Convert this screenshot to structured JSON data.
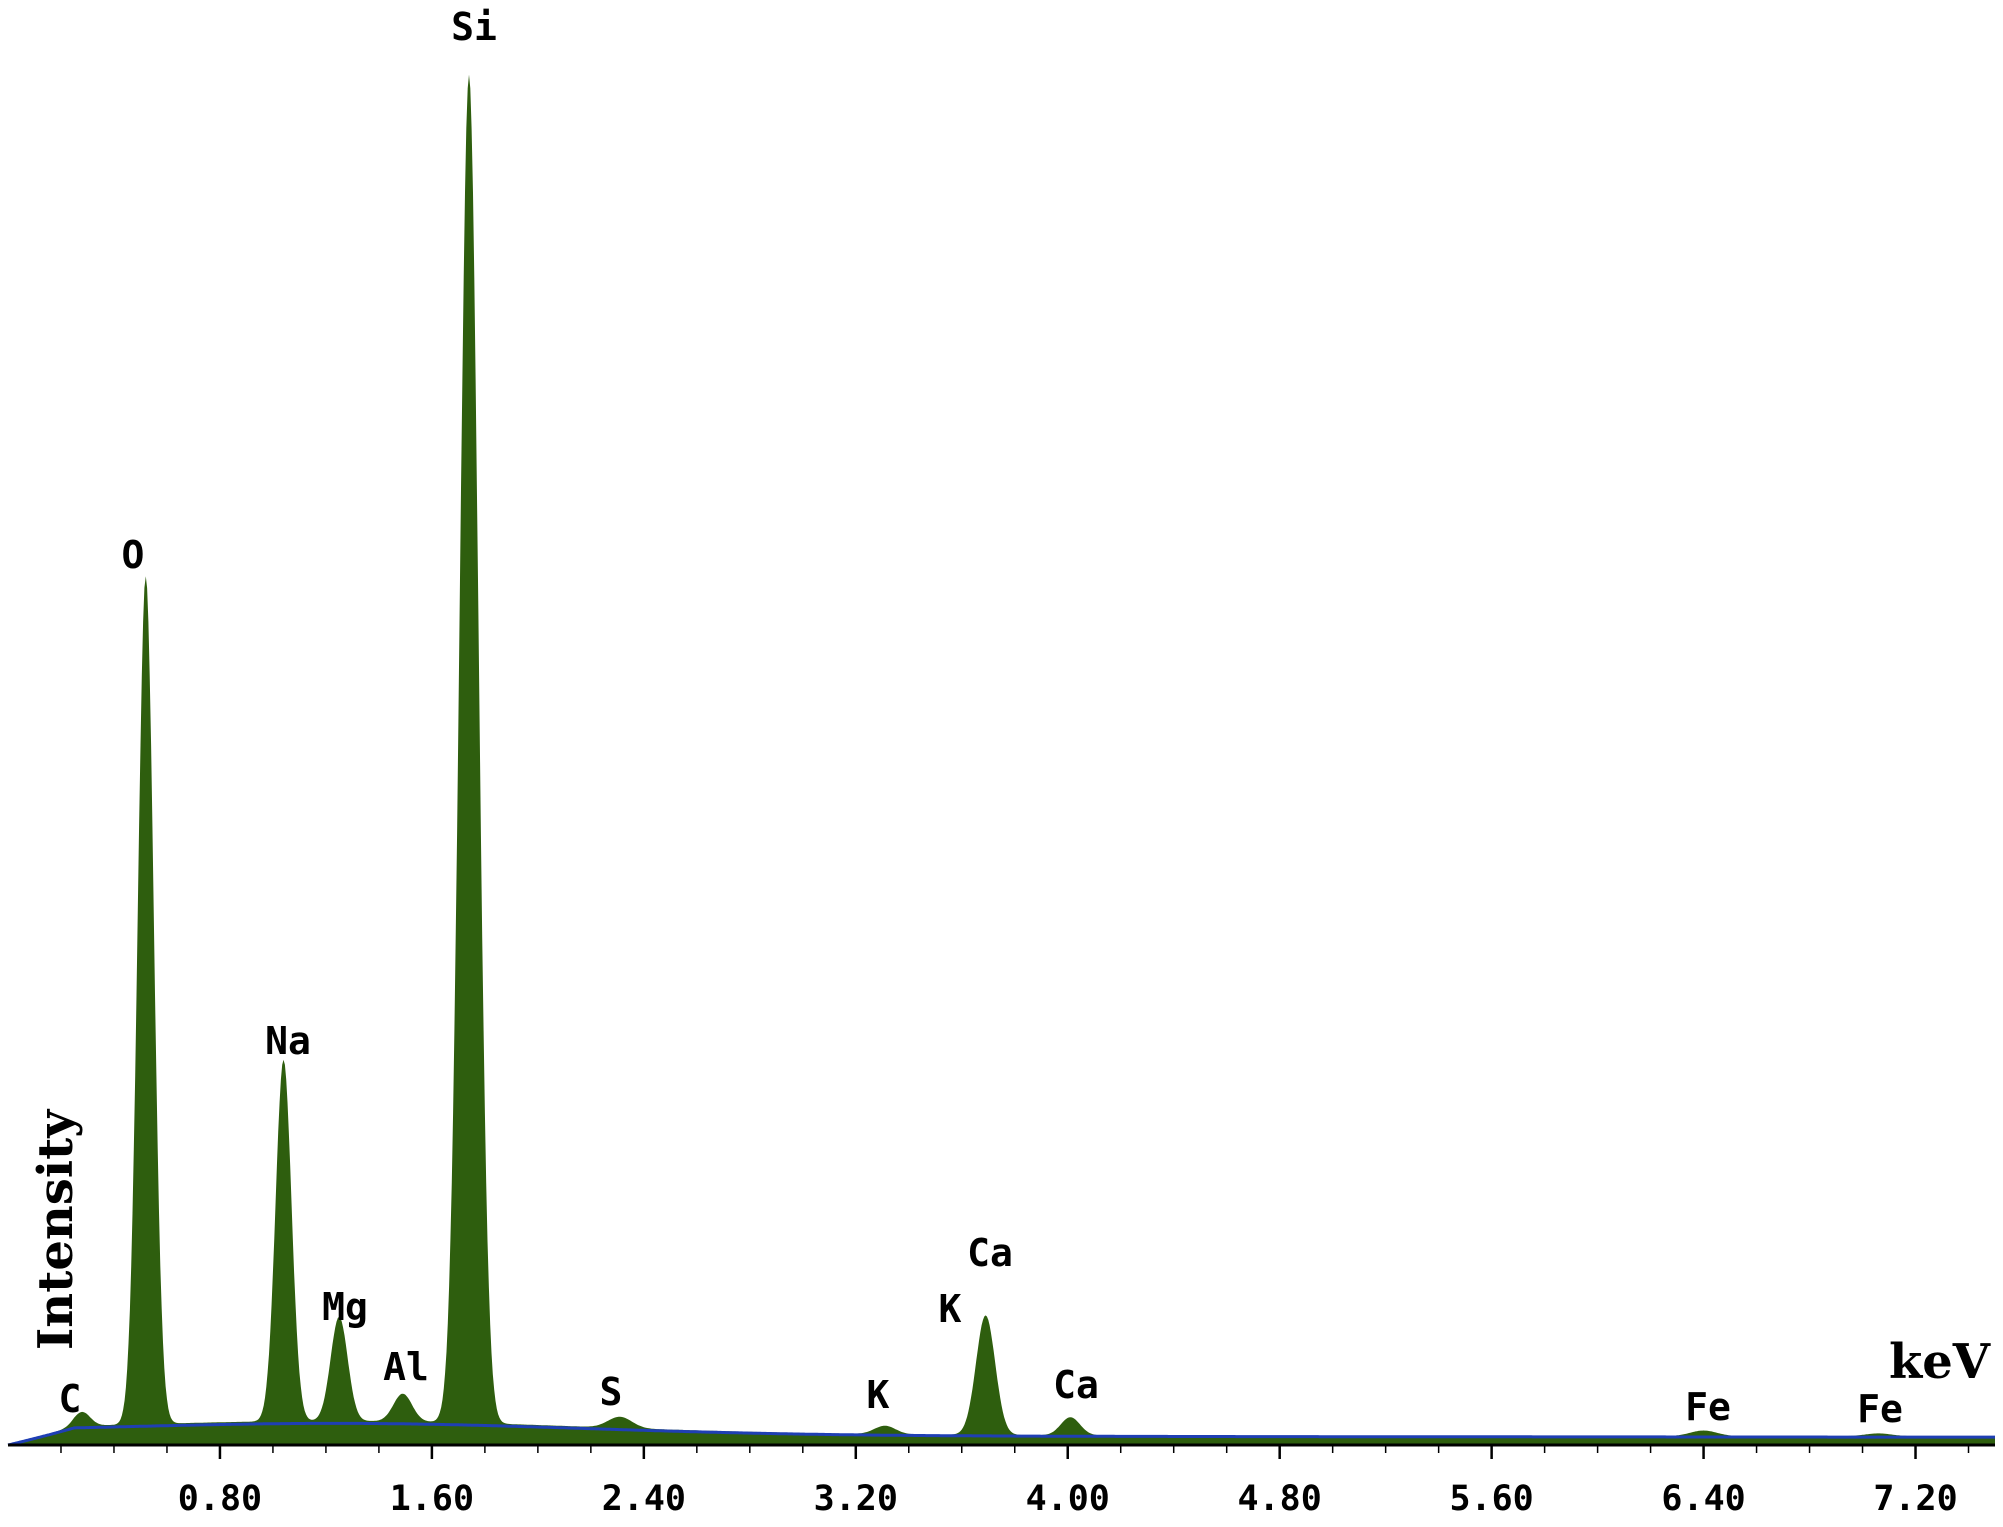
{
  "chart_data": {
    "type": "area",
    "title": "",
    "xlabel": "keV",
    "ylabel": "Intensity",
    "xlim": [
      0.0,
      7.5
    ],
    "ylim": [
      0,
      100
    ],
    "grid": false,
    "x_ticks": [
      0.8,
      1.6,
      2.4,
      3.2,
      4.0,
      4.8,
      5.6,
      6.4,
      7.2
    ],
    "x_tick_labels": [
      "0.80",
      "1.60",
      "2.40",
      "3.20",
      "4.00",
      "4.80",
      "5.60",
      "6.40",
      "7.20"
    ],
    "colors": {
      "spectrum": "#2e5e0e",
      "background": "#1f3fb4",
      "axis": "#000000"
    },
    "peaks": [
      {
        "label": "C",
        "energy": 0.28,
        "height": 1.0
      },
      {
        "label": "O",
        "energy": 0.52,
        "height": 61.0
      },
      {
        "label": "Na",
        "energy": 1.04,
        "height": 26.0
      },
      {
        "label": "Mg",
        "energy": 1.25,
        "height": 7.5
      },
      {
        "label": "Al",
        "energy": 1.49,
        "height": 2.0
      },
      {
        "label": "Si",
        "energy": 1.74,
        "height": 97.0
      },
      {
        "label": "S",
        "energy": 2.31,
        "height": 0.8
      },
      {
        "label": "K",
        "energy": 3.31,
        "height": 0.6
      },
      {
        "label": "Ca",
        "energy": 3.69,
        "height": 8.6
      },
      {
        "label": "K",
        "energy": 3.59,
        "height": 0
      },
      {
        "label": "Ca",
        "energy": 4.01,
        "height": 1.3
      },
      {
        "label": "Fe",
        "energy": 6.4,
        "height": 0.4
      },
      {
        "label": "Fe",
        "energy": 7.06,
        "height": 0.2
      }
    ]
  }
}
